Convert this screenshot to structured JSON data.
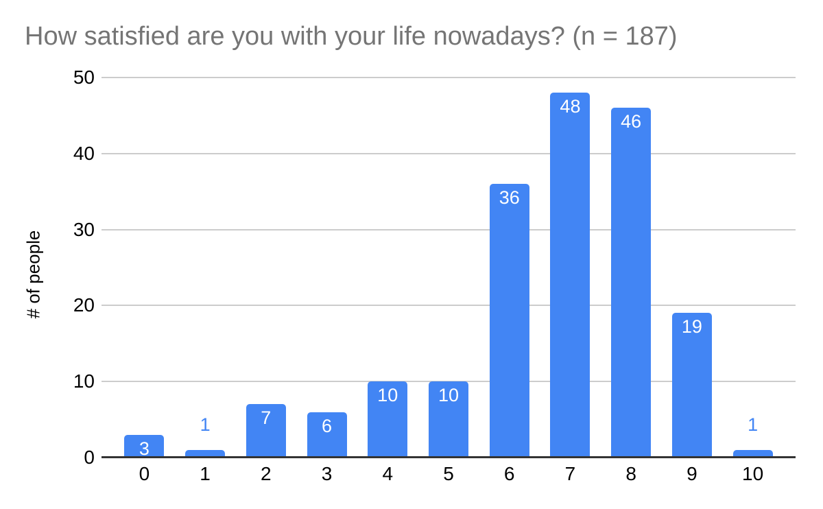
{
  "chart_data": {
    "type": "bar",
    "title": "How satisfied are you with your life nowadays? (n = 187)",
    "categories": [
      "0",
      "1",
      "2",
      "3",
      "4",
      "5",
      "6",
      "7",
      "8",
      "9",
      "10"
    ],
    "values": [
      3,
      1,
      7,
      6,
      10,
      10,
      36,
      48,
      46,
      19,
      1
    ],
    "xlabel": "",
    "ylabel": "# of people",
    "ylim": [
      0,
      50
    ],
    "yticks": [
      0,
      10,
      20,
      30,
      40,
      50
    ],
    "grid": true,
    "legend_position": "none",
    "colors": {
      "bar": "#4285f4",
      "label_inside": "#ffffff",
      "label_outside": "#4285f4",
      "gridline": "#cccccc",
      "axis_line": "#333333",
      "title_text": "#757575",
      "tick_text": "#000000"
    }
  }
}
